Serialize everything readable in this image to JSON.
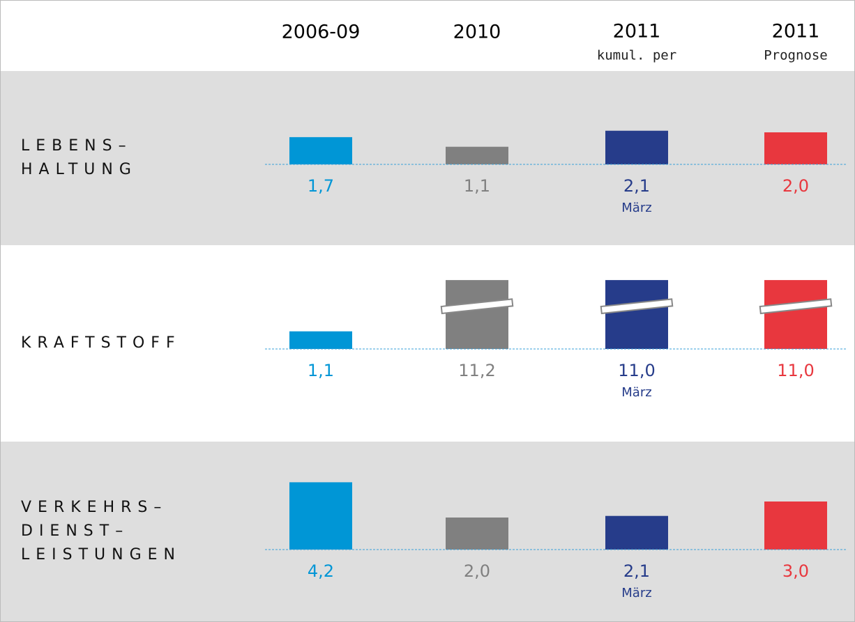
{
  "header": {
    "columns": [
      {
        "title": "2006-09"
      },
      {
        "title": "2010"
      },
      {
        "title": "2011",
        "subtitle": "kumul. per"
      },
      {
        "title": "2011",
        "subtitle": "Prognose"
      }
    ]
  },
  "chart_data": [
    {
      "type": "bar",
      "title": [
        "LEBENS–",
        "HALTUNG"
      ],
      "values": [
        1.7,
        1.1,
        2.1,
        2.0
      ],
      "value_labels": [
        "1,7",
        "1,1",
        "2,1",
        "2,0"
      ],
      "annotation": "März",
      "colors": [
        "#0096d6",
        "#808080",
        "#263c8a",
        "#e8373e"
      ],
      "ylim": [
        0,
        4.3
      ]
    },
    {
      "type": "bar",
      "title": [
        "KRAFTSTOFF"
      ],
      "values": [
        1.1,
        11.2,
        11.0,
        11.0
      ],
      "value_labels": [
        "1,1",
        "11,2",
        "11,0",
        "11,0"
      ],
      "annotation": "März",
      "colors": [
        "#0096d6",
        "#808080",
        "#263c8a",
        "#e8373e"
      ],
      "ylim": [
        0,
        4.3
      ]
    },
    {
      "type": "bar",
      "title": [
        "VERKEHRS–",
        "DIENST–",
        "LEISTUNGEN"
      ],
      "values": [
        4.2,
        2.0,
        2.1,
        3.0
      ],
      "value_labels": [
        "4,2",
        "2,0",
        "2,1",
        "3,0"
      ],
      "annotation": "März",
      "colors": [
        "#0096d6",
        "#808080",
        "#263c8a",
        "#e8373e"
      ],
      "ylim": [
        0,
        4.3
      ]
    }
  ]
}
